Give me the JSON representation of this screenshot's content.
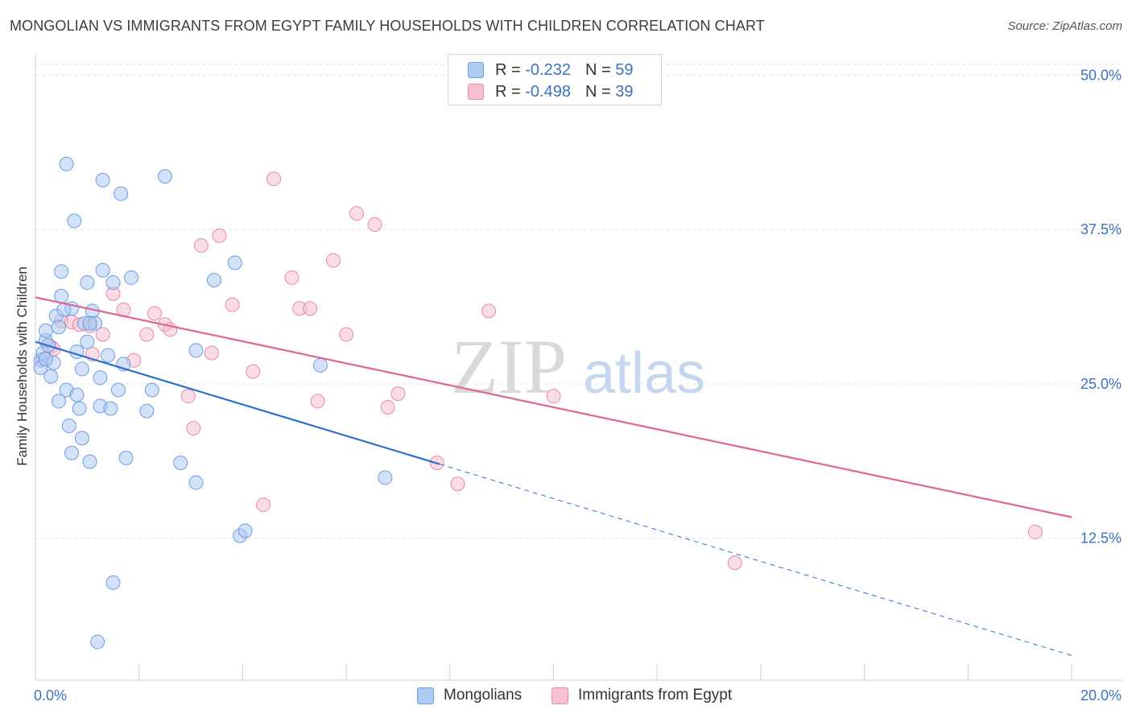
{
  "title": "MONGOLIAN VS IMMIGRANTS FROM EGYPT FAMILY HOUSEHOLDS WITH CHILDREN CORRELATION CHART",
  "source": "Source: ZipAtlas.com",
  "watermark": {
    "zip": "ZIP",
    "atlas": "atlas"
  },
  "legend": {
    "rows": [
      {
        "r_label": "R =",
        "r_value": "-0.232",
        "n_label": "N =",
        "n_value": "59"
      },
      {
        "r_label": "R =",
        "r_value": "-0.498",
        "n_label": "N =",
        "n_value": "39"
      }
    ]
  },
  "bottom_legend": [
    "Mongolians",
    "Immigrants from Egypt"
  ],
  "colors": {
    "mongolian_fill": "#aecbf2",
    "mongolian_stroke": "#6d9ee0",
    "mongolian_line": "#2f6fcc",
    "egypt_fill": "#f6c0d1",
    "egypt_stroke": "#e88aa9",
    "egypt_line": "#e0668f",
    "tick_label": "#3a72c6",
    "grid": "#e4e4e4"
  },
  "chart_data": {
    "type": "scatter",
    "xlabel": "",
    "ylabel": "Family Households with Children",
    "xlim": [
      0,
      20
    ],
    "ylim": [
      1,
      51
    ],
    "x_tick_labels": [
      "0.0%",
      "20.0%"
    ],
    "y_ticks": [
      12.5,
      25.0,
      37.5,
      50.0
    ],
    "y_tick_labels": [
      "12.5%",
      "25.0%",
      "37.5%",
      "50.0%"
    ],
    "grid": true,
    "legend_position": "top-center",
    "series": [
      {
        "name": "Mongolians",
        "R": -0.232,
        "N": 59,
        "trend": {
          "x0": 0,
          "y0": 28.4,
          "x1": 7.8,
          "y1": 18.5,
          "x_dashed_end": 20,
          "y_dashed_end": 3.0
        },
        "points": [
          [
            0.1,
            26.9
          ],
          [
            0.1,
            26.3
          ],
          [
            0.15,
            27.5
          ],
          [
            0.2,
            28.5
          ],
          [
            0.2,
            29.3
          ],
          [
            0.25,
            28.1
          ],
          [
            0.3,
            25.6
          ],
          [
            0.35,
            26.7
          ],
          [
            0.4,
            30.5
          ],
          [
            0.45,
            29.6
          ],
          [
            0.45,
            23.6
          ],
          [
            0.5,
            34.1
          ],
          [
            0.5,
            32.1
          ],
          [
            0.6,
            42.8
          ],
          [
            0.6,
            24.5
          ],
          [
            0.65,
            21.6
          ],
          [
            0.7,
            19.4
          ],
          [
            0.7,
            31.1
          ],
          [
            0.75,
            38.2
          ],
          [
            0.8,
            24.1
          ],
          [
            0.8,
            27.6
          ],
          [
            0.85,
            23.0
          ],
          [
            0.9,
            20.6
          ],
          [
            0.9,
            26.2
          ],
          [
            0.95,
            29.9
          ],
          [
            1.0,
            28.4
          ],
          [
            1.0,
            33.2
          ],
          [
            1.05,
            18.7
          ],
          [
            1.1,
            30.9
          ],
          [
            1.15,
            29.9
          ],
          [
            1.2,
            4.1
          ],
          [
            1.25,
            25.5
          ],
          [
            1.25,
            23.2
          ],
          [
            1.3,
            41.5
          ],
          [
            1.3,
            34.2
          ],
          [
            1.4,
            27.3
          ],
          [
            1.45,
            23.0
          ],
          [
            1.5,
            33.2
          ],
          [
            1.5,
            8.9
          ],
          [
            1.6,
            24.5
          ],
          [
            1.65,
            40.4
          ],
          [
            1.7,
            26.6
          ],
          [
            1.75,
            19.0
          ],
          [
            1.85,
            33.6
          ],
          [
            2.15,
            22.8
          ],
          [
            2.25,
            24.5
          ],
          [
            2.5,
            41.8
          ],
          [
            2.8,
            18.6
          ],
          [
            3.1,
            17.0
          ],
          [
            3.1,
            27.7
          ],
          [
            3.45,
            33.4
          ],
          [
            3.85,
            34.8
          ],
          [
            3.95,
            12.7
          ],
          [
            4.05,
            13.1
          ],
          [
            5.5,
            26.5
          ],
          [
            6.75,
            17.4
          ],
          [
            1.05,
            29.9
          ],
          [
            0.2,
            27.0
          ],
          [
            0.55,
            31.0
          ]
        ]
      },
      {
        "name": "Immigrants from Egypt",
        "R": -0.498,
        "N": 39,
        "trend": {
          "x0": 0,
          "y0": 32.0,
          "x1": 20,
          "y1": 14.2
        },
        "points": [
          [
            0.15,
            27.0
          ],
          [
            0.3,
            28.0
          ],
          [
            0.35,
            27.8
          ],
          [
            0.5,
            30.1
          ],
          [
            0.7,
            30.0
          ],
          [
            0.85,
            29.8
          ],
          [
            1.05,
            29.7
          ],
          [
            1.1,
            27.4
          ],
          [
            1.3,
            29.0
          ],
          [
            1.5,
            32.3
          ],
          [
            1.7,
            31.0
          ],
          [
            1.9,
            26.9
          ],
          [
            2.15,
            29.0
          ],
          [
            2.3,
            30.7
          ],
          [
            2.5,
            29.8
          ],
          [
            2.6,
            29.4
          ],
          [
            2.95,
            24.0
          ],
          [
            3.05,
            21.4
          ],
          [
            3.2,
            36.2
          ],
          [
            3.4,
            27.5
          ],
          [
            3.55,
            37.0
          ],
          [
            3.8,
            31.4
          ],
          [
            4.2,
            26.0
          ],
          [
            4.4,
            15.2
          ],
          [
            4.6,
            41.6
          ],
          [
            4.95,
            33.6
          ],
          [
            5.1,
            31.1
          ],
          [
            5.3,
            31.1
          ],
          [
            5.45,
            23.6
          ],
          [
            5.75,
            35.0
          ],
          [
            6.0,
            29.0
          ],
          [
            6.2,
            38.8
          ],
          [
            6.55,
            37.9
          ],
          [
            6.8,
            23.1
          ],
          [
            7.0,
            24.2
          ],
          [
            7.75,
            18.6
          ],
          [
            8.15,
            16.9
          ],
          [
            8.75,
            30.9
          ],
          [
            10.0,
            24.0
          ]
        ],
        "extra_points": [
          [
            13.5,
            10.5
          ],
          [
            19.3,
            13.0
          ]
        ]
      }
    ]
  }
}
